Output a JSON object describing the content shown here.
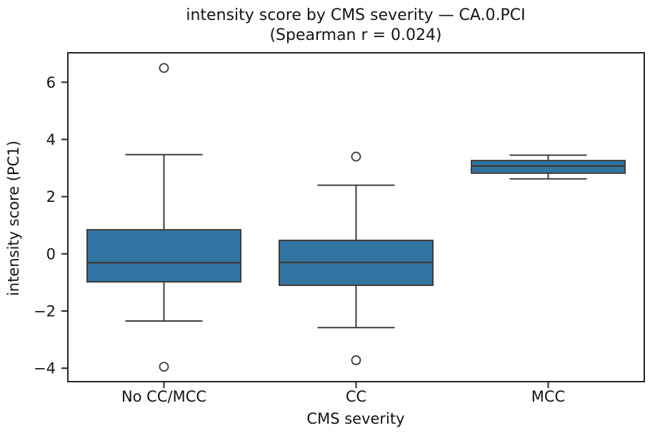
{
  "chart_data": {
    "type": "box",
    "title": "intensity score by CMS severity — CA.0.PCI\n(Spearman r = 0.024)",
    "title_lines": [
      "intensity score by CMS severity — CA.0.PCI",
      "(Spearman r = 0.024)"
    ],
    "xlabel": "CMS severity",
    "ylabel": "intensity score (PC1)",
    "categories": [
      "No CC/MCC",
      "CC",
      "MCC"
    ],
    "ylim": [
      -4.47,
      7.03
    ],
    "yticks": [
      {
        "value": 6,
        "label": "6"
      },
      {
        "value": 4,
        "label": "4"
      },
      {
        "value": 2,
        "label": "2"
      },
      {
        "value": 0,
        "label": "0"
      },
      {
        "value": -2,
        "label": "−2"
      },
      {
        "value": -4,
        "label": "−4"
      }
    ],
    "series": [
      {
        "category": "No CC/MCC",
        "whisker_low": -2.35,
        "q1": -0.98,
        "median": -0.31,
        "q3": 0.84,
        "whisker_high": 3.47,
        "outliers": [
          6.5,
          -3.95
        ]
      },
      {
        "category": "CC",
        "whisker_low": -2.58,
        "q1": -1.1,
        "median": -0.3,
        "q3": 0.47,
        "whisker_high": 2.4,
        "outliers": [
          3.4,
          -3.72
        ]
      },
      {
        "category": "MCC",
        "whisker_low": 2.62,
        "q1": 2.82,
        "median": 3.07,
        "q3": 3.26,
        "whisker_high": 3.45,
        "outliers": []
      }
    ],
    "grid": false,
    "legend": null,
    "colors": {
      "box_fill": "#3274a1",
      "line_color": "#3d3d3d",
      "spine_color": "#262626",
      "text_color": "#141414",
      "background": "#ffffff"
    }
  }
}
